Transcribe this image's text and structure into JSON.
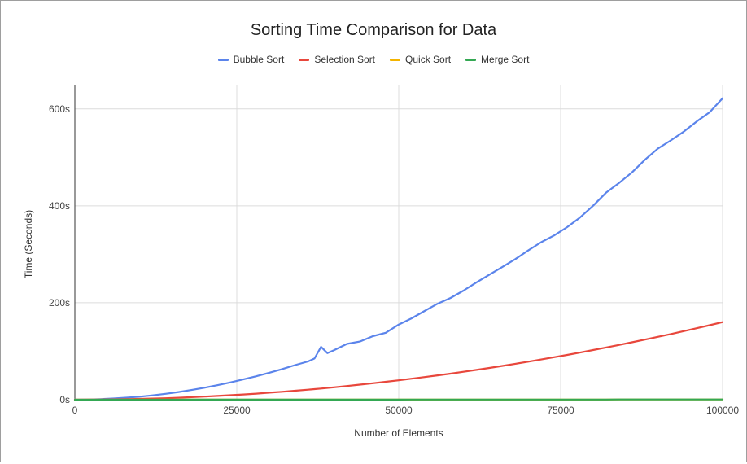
{
  "chart_data": {
    "type": "line",
    "title": "Sorting Time Comparison for Data",
    "xlabel": "Number of Elements",
    "ylabel": "Time (Seconds)",
    "xlim": [
      0,
      100000
    ],
    "ylim": [
      0,
      650
    ],
    "x_ticks": [
      0,
      25000,
      50000,
      75000,
      100000
    ],
    "x_tick_labels": [
      "0",
      "25000",
      "50000",
      "75000",
      "100000"
    ],
    "y_ticks": [
      0,
      200,
      400,
      600
    ],
    "y_tick_labels": [
      "0s",
      "200s",
      "400s",
      "600s"
    ],
    "grid": true,
    "legend_position": "top",
    "x": [
      0,
      2000,
      4000,
      6000,
      8000,
      10000,
      12000,
      14000,
      16000,
      18000,
      20000,
      22000,
      24000,
      26000,
      28000,
      30000,
      32000,
      34000,
      36000,
      37000,
      38000,
      39000,
      40000,
      42000,
      44000,
      46000,
      48000,
      50000,
      52000,
      54000,
      56000,
      58000,
      60000,
      62000,
      64000,
      66000,
      68000,
      70000,
      72000,
      74000,
      76000,
      78000,
      80000,
      82000,
      84000,
      86000,
      88000,
      90000,
      92000,
      94000,
      96000,
      98000,
      100000
    ],
    "series": [
      {
        "name": "Bubble Sort",
        "color": "#5b84eb",
        "values": [
          0,
          0.3,
          1.2,
          2.5,
          4.2,
          6.2,
          8.9,
          12.1,
          15.8,
          20.0,
          24.7,
          29.9,
          35.6,
          41.8,
          48.4,
          55.6,
          63.2,
          71.4,
          79.0,
          85.0,
          109.0,
          96.0,
          102.0,
          115.0,
          120.0,
          131.0,
          138.0,
          155.0,
          168.0,
          183.0,
          198.0,
          210.0,
          225.0,
          242.0,
          258.0,
          274.0,
          290.0,
          308.0,
          325.0,
          339.0,
          356.0,
          376.0,
          400.0,
          427.0,
          447.0,
          469.0,
          495.0,
          518.0,
          535.0,
          553.0,
          574.0,
          593.0,
          622.0
        ]
      },
      {
        "name": "Selection Sort",
        "color": "#e8473c",
        "values": [
          0,
          0.1,
          0.3,
          0.6,
          1.0,
          1.6,
          2.3,
          3.1,
          4.1,
          5.2,
          6.4,
          7.7,
          9.2,
          10.8,
          12.5,
          14.4,
          16.3,
          18.4,
          20.7,
          21.8,
          23.0,
          24.3,
          25.6,
          28.2,
          31.0,
          33.9,
          36.9,
          40.0,
          43.3,
          46.7,
          50.2,
          53.8,
          57.6,
          61.5,
          65.5,
          69.7,
          74.0,
          78.4,
          82.9,
          87.6,
          92.4,
          97.3,
          102.4,
          107.6,
          112.9,
          118.4,
          124.0,
          129.6,
          135.4,
          141.4,
          147.5,
          153.7,
          160.0
        ]
      },
      {
        "name": "Quick Sort",
        "color": "#f4b400",
        "values": [
          0,
          0.01,
          0.02,
          0.03,
          0.04,
          0.05,
          0.06,
          0.07,
          0.08,
          0.09,
          0.1,
          0.11,
          0.12,
          0.13,
          0.14,
          0.15,
          0.16,
          0.17,
          0.18,
          0.18,
          0.19,
          0.19,
          0.2,
          0.21,
          0.22,
          0.23,
          0.24,
          0.25,
          0.26,
          0.27,
          0.28,
          0.29,
          0.3,
          0.31,
          0.32,
          0.33,
          0.34,
          0.35,
          0.36,
          0.37,
          0.38,
          0.39,
          0.4,
          0.41,
          0.42,
          0.43,
          0.44,
          0.45,
          0.46,
          0.47,
          0.48,
          0.49,
          0.5
        ]
      },
      {
        "name": "Merge Sort",
        "color": "#34a853",
        "values": [
          0,
          0.01,
          0.02,
          0.03,
          0.04,
          0.05,
          0.06,
          0.07,
          0.08,
          0.09,
          0.1,
          0.11,
          0.12,
          0.13,
          0.14,
          0.15,
          0.16,
          0.17,
          0.18,
          0.19,
          0.19,
          0.2,
          0.2,
          0.21,
          0.22,
          0.23,
          0.24,
          0.25,
          0.26,
          0.27,
          0.28,
          0.29,
          0.3,
          0.31,
          0.32,
          0.33,
          0.34,
          0.35,
          0.36,
          0.37,
          0.38,
          0.39,
          0.4,
          0.41,
          0.42,
          0.43,
          0.44,
          0.45,
          0.46,
          0.47,
          0.48,
          0.49,
          0.5
        ]
      }
    ]
  }
}
